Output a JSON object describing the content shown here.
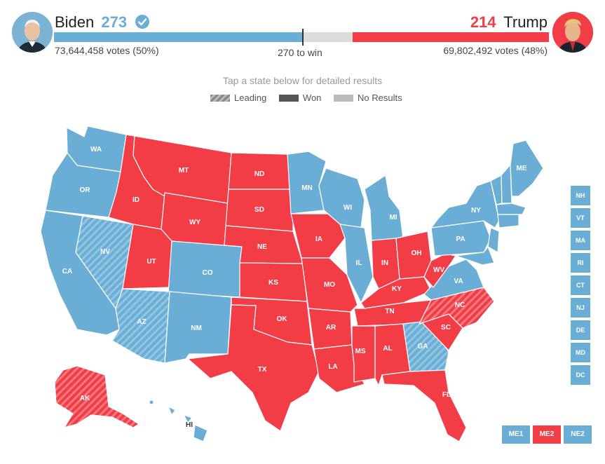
{
  "header": {
    "biden": {
      "name": "Biden",
      "electoral_votes": "273",
      "votes_text": "73,644,458 votes (50%)",
      "color": "#6aaed6"
    },
    "trump": {
      "name": "Trump",
      "electoral_votes": "214",
      "votes_text": "69,802,492 votes (48%)",
      "color": "#f23c46"
    },
    "win_label": "270 to win",
    "biden_share": 0.5,
    "trump_share": 0.48
  },
  "instructions": "Tap a state below for detailed results",
  "legend": {
    "leading": "Leading",
    "won": "Won",
    "no_results": "No Results"
  },
  "colors": {
    "dem": "#6aaed6",
    "rep": "#f23c46",
    "no_results": "#bbbbbb"
  },
  "states": {
    "WA": "WA",
    "OR": "OR",
    "CA": "CA",
    "NV": "NV",
    "ID": "ID",
    "MT": "MT",
    "WY": "WY",
    "UT": "UT",
    "AZ": "AZ",
    "CO": "CO",
    "NM": "NM",
    "ND": "ND",
    "SD": "SD",
    "NE": "NE",
    "KS": "KS",
    "OK": "OK",
    "TX": "TX",
    "MN": "MN",
    "IA": "IA",
    "MO": "MO",
    "AR": "AR",
    "LA": "LA",
    "WI": "WI",
    "IL": "IL",
    "MI": "MI",
    "IN": "IN",
    "OH": "OH",
    "KY": "KY",
    "TN": "TN",
    "MS": "MS",
    "AL": "AL",
    "GA": "GA",
    "FL": "FL",
    "SC": "SC",
    "NC": "NC",
    "VA": "VA",
    "WV": "WV",
    "PA": "PA",
    "NY": "NY",
    "ME": "ME",
    "AK": "AK",
    "HI": "HI"
  },
  "small_states": [
    "NH",
    "VT",
    "MA",
    "RI",
    "CT",
    "NJ",
    "DE",
    "MD",
    "DC"
  ],
  "districts": [
    "ME1",
    "ME2",
    "NE2"
  ]
}
